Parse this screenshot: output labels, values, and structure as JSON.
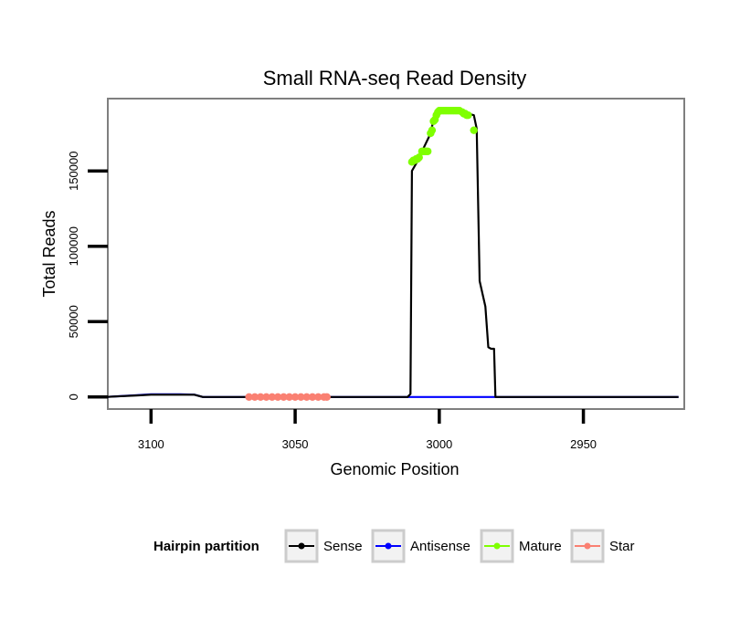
{
  "chart_data": {
    "type": "line",
    "title": "Small RNA-seq Read Density",
    "xlabel": "Genomic Position",
    "ylabel": "Total Reads",
    "xlim": [
      3115,
      2915
    ],
    "x_reversed": true,
    "ylim": [
      -8000,
      198000
    ],
    "x_ticks": [
      3100,
      3050,
      3000,
      2950
    ],
    "x_tick_labels": [
      "3100",
      "3050",
      "3000",
      "2950"
    ],
    "y_ticks": [
      0,
      50000,
      100000,
      150000
    ],
    "y_tick_labels": [
      "0",
      "50000",
      "100000",
      "150000"
    ],
    "grid": true,
    "legend": {
      "title": "Hairpin partition",
      "position": "bottom",
      "entries": [
        {
          "label": "Sense",
          "color": "#000000"
        },
        {
          "label": "Antisense",
          "color": "#0000ff"
        },
        {
          "label": "Mature",
          "color": "#7fff00"
        },
        {
          "label": "Star",
          "color": "#fa8072"
        }
      ]
    },
    "series": [
      {
        "name": "Sense",
        "color": "#000000",
        "style": "line",
        "x": [
          3116,
          3105,
          3100,
          3090,
          3085,
          3082,
          3011,
          3010,
          3009.5,
          3008,
          3007,
          3006,
          3003,
          3002,
          3000,
          2998,
          2995,
          2992,
          2988,
          2987,
          2986,
          2984,
          2983,
          2982,
          2981,
          2980.5,
          2917
        ],
        "y": [
          0,
          1000,
          1500,
          1500,
          1500,
          0,
          0,
          2000,
          150000,
          155000,
          158000,
          163000,
          175000,
          184000,
          190000,
          190000,
          190000,
          189000,
          187000,
          178000,
          77000,
          60000,
          33000,
          32000,
          32000,
          0,
          0
        ]
      },
      {
        "name": "Antisense",
        "color": "#0000ff",
        "style": "line",
        "x": [
          3116,
          3105,
          3100,
          3090,
          3085,
          3082,
          2981,
          2917
        ],
        "y": [
          0,
          1200,
          1800,
          1800,
          1600,
          0,
          0,
          0
        ]
      },
      {
        "name": "Mature",
        "color": "#7fff00",
        "style": "points",
        "x": [
          3009.5,
          3009,
          3008.5,
          3008,
          3007.5,
          3007,
          3006,
          3005.5,
          3005,
          3004.5,
          3004,
          3003,
          3002.5,
          3002,
          3001.5,
          3001,
          3000.5,
          3000,
          2999.5,
          2999,
          2998.5,
          2998,
          2997.5,
          2997,
          2996.5,
          2996,
          2995.5,
          2995,
          2994.5,
          2994,
          2993.5,
          2993,
          2992,
          2991.5,
          2991,
          2990.5,
          2990,
          2988
        ],
        "y": [
          156000,
          157000,
          157000,
          158000,
          158000,
          159000,
          163000,
          163000,
          163000,
          163000,
          163000,
          175000,
          177000,
          183000,
          184000,
          187000,
          189000,
          190000,
          190000,
          190000,
          190000,
          190000,
          190000,
          190000,
          190000,
          190000,
          190000,
          190000,
          190000,
          190000,
          190000,
          190000,
          189000,
          188000,
          188000,
          187000,
          187000,
          177000
        ]
      },
      {
        "name": "Star",
        "color": "#fa8072",
        "style": "points",
        "x": [
          3066,
          3064,
          3062,
          3060,
          3058,
          3056,
          3054,
          3052,
          3050,
          3048,
          3046,
          3044,
          3042,
          3040,
          3039
        ],
        "y": [
          0,
          0,
          0,
          0,
          0,
          0,
          0,
          0,
          0,
          0,
          0,
          0,
          0,
          0,
          0
        ]
      }
    ]
  }
}
